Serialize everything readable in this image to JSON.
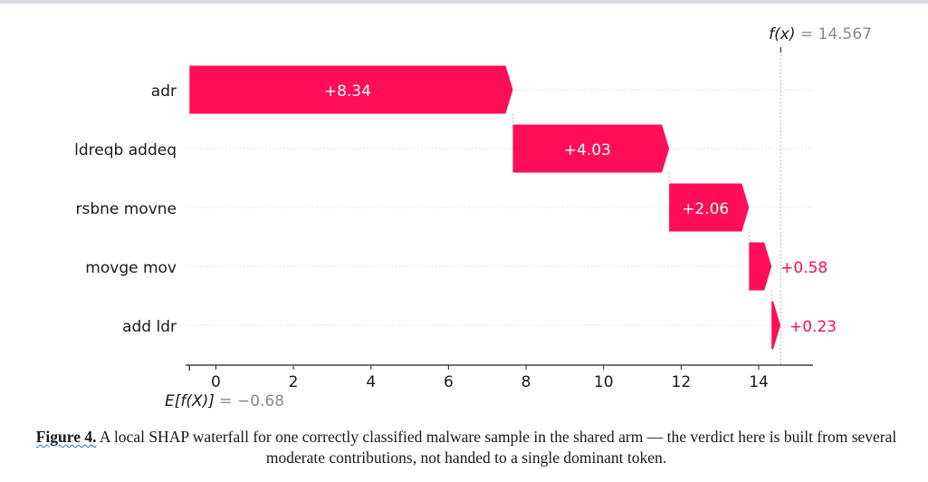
{
  "chart_data": {
    "type": "waterfall",
    "base_value": -0.68,
    "output_value": 14.567,
    "features": [
      {
        "name": "adr",
        "shap": 8.34,
        "label": "+8.34"
      },
      {
        "name": "ldreqb addeq",
        "shap": 4.03,
        "label": "+4.03"
      },
      {
        "name": "rsbne movne",
        "shap": 2.06,
        "label": "+2.06"
      },
      {
        "name": "movge mov",
        "shap": 0.58,
        "label": "+0.58"
      },
      {
        "name": "add ldr",
        "shap": 0.23,
        "label": "+0.23"
      }
    ],
    "xticks": [
      0,
      2,
      4,
      6,
      8,
      10,
      12,
      14
    ],
    "xlim": [
      -0.78,
      15.4
    ],
    "fx_label": {
      "name": "f(x)",
      "value": " = 14.567"
    },
    "efx_label": {
      "name": "E[f(X)]",
      "value": " = −0.68"
    },
    "colors": {
      "positive": "#ff0d57",
      "grid": "#dddddd",
      "muted": "#888888",
      "text": "#1a1a1a"
    },
    "grid": true
  },
  "caption": {
    "label": "Figure 4.",
    "text": " A local SHAP waterfall for one correctly classified malware sample in the shared arm — the verdict here is built from several moderate contributions, not handed to a single dominant token."
  }
}
